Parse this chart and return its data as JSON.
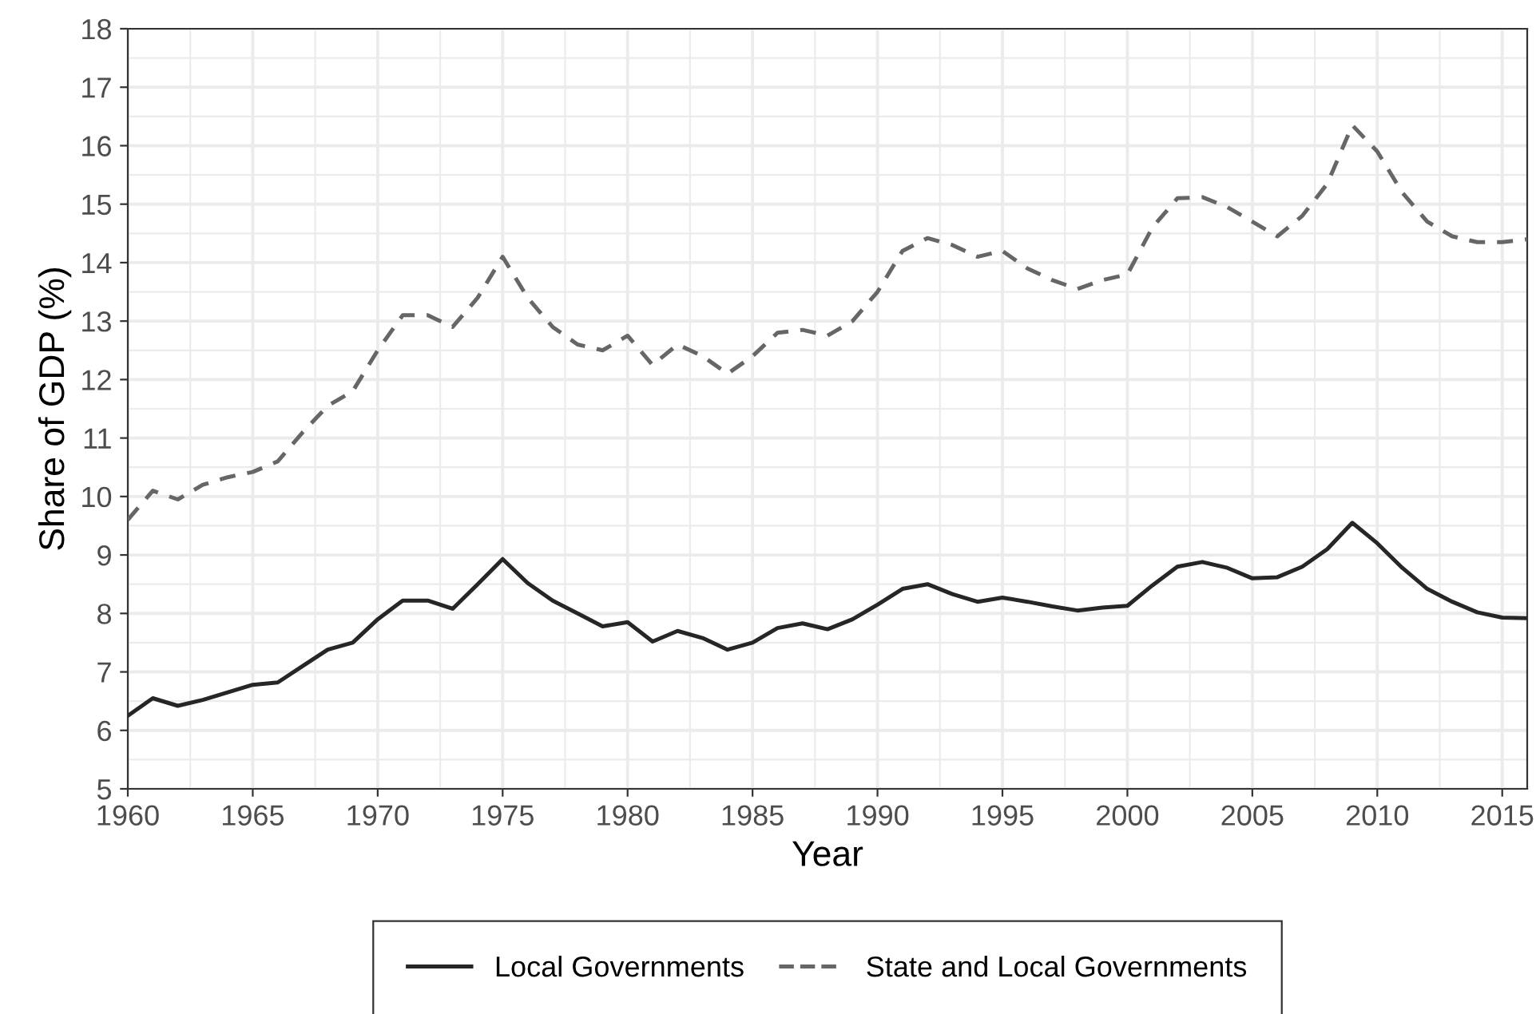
{
  "chart_data": {
    "type": "line",
    "xlabel": "Year",
    "ylabel": "Share of GDP (%)",
    "x": [
      1960,
      1961,
      1962,
      1963,
      1964,
      1965,
      1966,
      1967,
      1968,
      1969,
      1970,
      1971,
      1972,
      1973,
      1974,
      1975,
      1976,
      1977,
      1978,
      1979,
      1980,
      1981,
      1982,
      1983,
      1984,
      1985,
      1986,
      1987,
      1988,
      1989,
      1990,
      1991,
      1992,
      1993,
      1994,
      1995,
      1996,
      1997,
      1998,
      1999,
      2000,
      2001,
      2002,
      2003,
      2004,
      2005,
      2006,
      2007,
      2008,
      2009,
      2010,
      2011,
      2012,
      2013,
      2014,
      2015,
      2016
    ],
    "series": [
      {
        "name": "Local Governments",
        "color": "#262626",
        "line_style": "solid",
        "values": [
          6.25,
          6.55,
          6.42,
          6.52,
          6.65,
          6.78,
          6.82,
          7.1,
          7.38,
          7.5,
          7.9,
          8.22,
          8.22,
          8.08,
          8.5,
          8.93,
          8.52,
          8.22,
          8.0,
          7.78,
          7.85,
          7.52,
          7.7,
          7.58,
          7.38,
          7.5,
          7.75,
          7.83,
          7.73,
          7.9,
          8.15,
          8.42,
          8.5,
          8.33,
          8.2,
          8.27,
          8.2,
          8.12,
          8.05,
          8.1,
          8.13,
          8.48,
          8.8,
          8.88,
          8.78,
          8.6,
          8.62,
          8.8,
          9.1,
          9.55,
          9.2,
          8.78,
          8.42,
          8.2,
          8.02,
          7.93,
          7.92
        ]
      },
      {
        "name": "State and Local Governments",
        "color": "#666666",
        "line_style": "dashed",
        "values": [
          9.6,
          10.1,
          9.95,
          10.2,
          10.33,
          10.42,
          10.6,
          11.1,
          11.55,
          11.8,
          12.5,
          13.1,
          13.1,
          12.9,
          13.4,
          14.1,
          13.4,
          12.9,
          12.6,
          12.5,
          12.75,
          12.25,
          12.6,
          12.4,
          12.1,
          12.4,
          12.8,
          12.85,
          12.75,
          13.0,
          13.5,
          14.2,
          14.42,
          14.3,
          14.1,
          14.2,
          13.9,
          13.7,
          13.55,
          13.7,
          13.8,
          14.6,
          15.1,
          15.12,
          14.95,
          14.7,
          14.45,
          14.8,
          15.35,
          16.35,
          15.9,
          15.2,
          14.7,
          14.45,
          14.35,
          14.35,
          14.4
        ]
      }
    ],
    "xlim": [
      1960,
      2016
    ],
    "xticks": [
      1960,
      1965,
      1970,
      1975,
      1980,
      1985,
      1990,
      1995,
      2000,
      2005,
      2010,
      2015
    ],
    "ylim": [
      5,
      18
    ],
    "yticks": [
      5,
      6,
      7,
      8,
      9,
      10,
      11,
      12,
      13,
      14,
      15,
      16,
      17,
      18
    ],
    "grid": true,
    "legend": "bottom",
    "marker": "none"
  }
}
